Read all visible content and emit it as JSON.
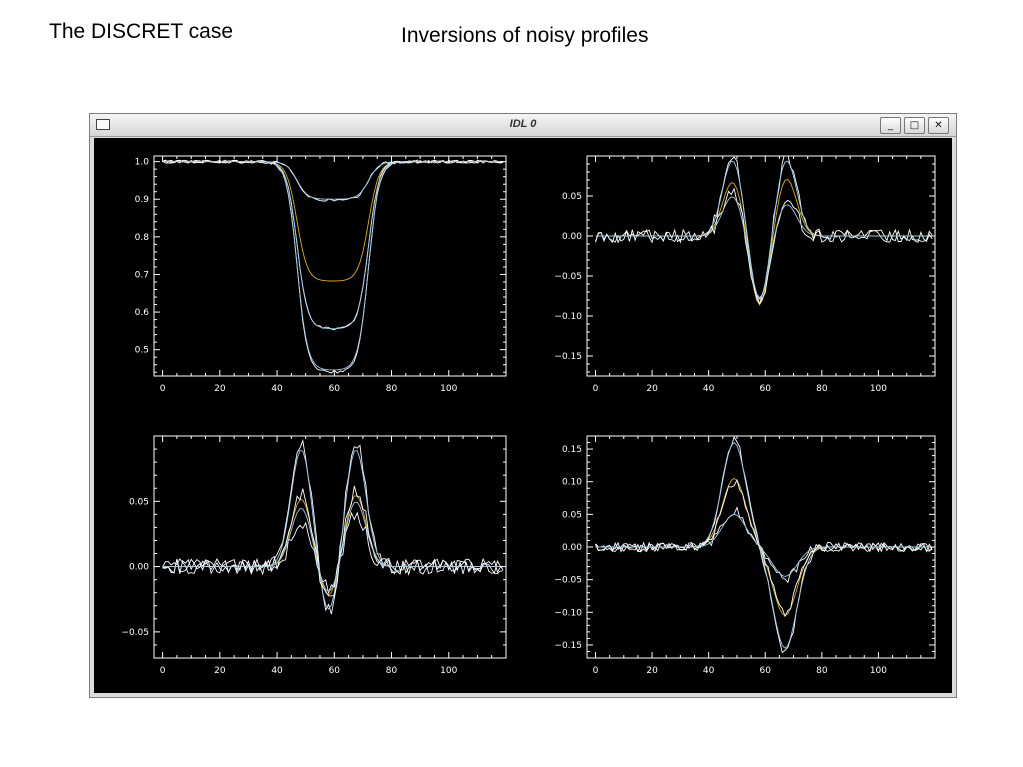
{
  "slide": {
    "title_left": "The DISCRET case",
    "title_right": "Inversions of noisy profiles"
  },
  "window": {
    "title": "IDL 0",
    "minimize_glyph": "_",
    "maximize_glyph": "□",
    "close_glyph": "✕"
  },
  "colors": {
    "background": "#000000",
    "axes": "#ffffff",
    "white_lines": "#ffffff",
    "blue_lines": "#9ecbe8",
    "yellow_lines": "#e0b000"
  },
  "chart_data": [
    {
      "type": "line",
      "panel": "top-left",
      "xlim": [
        -3,
        120
      ],
      "ylim": [
        0.43,
        1.015
      ],
      "xticks": [
        "0",
        "20",
        "40",
        "60",
        "80",
        "100"
      ],
      "xtick_values": [
        0,
        20,
        40,
        60,
        80,
        100
      ],
      "yticks": [
        "0.5",
        "0.6",
        "0.7",
        "0.8",
        "0.9",
        "1.0"
      ],
      "ytick_values": [
        0.5,
        0.6,
        0.7,
        0.8,
        0.9,
        1.0
      ],
      "profile_kind": "absorption",
      "series": [
        {
          "color": "white",
          "depth": 0.103,
          "noise": 0.004
        },
        {
          "color": "blue",
          "depth": 0.1,
          "noise": 0.0
        },
        {
          "color": "yellow",
          "depth": 0.318,
          "noise": 0.0
        },
        {
          "color": "white",
          "depth": 0.445,
          "noise": 0.004
        },
        {
          "color": "blue",
          "depth": 0.445,
          "noise": 0.0
        },
        {
          "color": "white",
          "depth": 0.56,
          "noise": 0.004
        },
        {
          "color": "blue",
          "depth": 0.555,
          "noise": 0.0
        }
      ]
    },
    {
      "type": "line",
      "panel": "top-right",
      "xlim": [
        -3,
        120
      ],
      "ylim": [
        -0.175,
        0.1
      ],
      "xticks": [
        "0",
        "20",
        "40",
        "60",
        "80",
        "100"
      ],
      "xtick_values": [
        0,
        20,
        40,
        60,
        80,
        100
      ],
      "yticks": [
        "−0.15",
        "−0.10",
        "−0.05",
        "0.00",
        "0.05"
      ],
      "ytick_values": [
        -0.15,
        -0.1,
        -0.05,
        0.0,
        0.05
      ],
      "profile_kind": "double-peak",
      "series": [
        {
          "color": "white",
          "peak1": 0.1,
          "dip": -0.09,
          "peak2": 0.1,
          "noise": 0.008
        },
        {
          "color": "blue",
          "peak1": 0.095,
          "dip": -0.085,
          "peak2": 0.095,
          "noise": 0.0
        },
        {
          "color": "yellow",
          "peak1": 0.068,
          "dip": -0.09,
          "peak2": 0.072,
          "noise": 0.0
        },
        {
          "color": "white",
          "peak1": 0.055,
          "dip": -0.085,
          "peak2": 0.045,
          "noise": 0.008
        },
        {
          "color": "blue",
          "peak1": 0.05,
          "dip": -0.08,
          "peak2": 0.04,
          "noise": 0.0
        }
      ]
    },
    {
      "type": "line",
      "panel": "bottom-left",
      "xlim": [
        -3,
        120
      ],
      "ylim": [
        -0.07,
        0.1
      ],
      "xticks": [
        "0",
        "20",
        "40",
        "60",
        "80",
        "100"
      ],
      "xtick_values": [
        0,
        20,
        40,
        60,
        80,
        100
      ],
      "yticks": [
        "−0.05",
        "0.00",
        "0.05"
      ],
      "ytick_values": [
        -0.05,
        0.0,
        0.05
      ],
      "profile_kind": "double-peak",
      "series": [
        {
          "color": "white",
          "peak1": 0.096,
          "dip": -0.04,
          "peak2": 0.096,
          "noise": 0.006
        },
        {
          "color": "blue",
          "peak1": 0.09,
          "dip": -0.038,
          "peak2": 0.09,
          "noise": 0.0
        },
        {
          "color": "yellow",
          "peak1": 0.052,
          "dip": -0.025,
          "peak2": 0.055,
          "noise": 0.0
        },
        {
          "color": "white",
          "peak1": 0.055,
          "dip": -0.03,
          "peak2": 0.06,
          "noise": 0.006
        },
        {
          "color": "white",
          "peak1": 0.035,
          "dip": -0.018,
          "peak2": 0.04,
          "noise": 0.006
        },
        {
          "color": "blue",
          "peak1": 0.045,
          "dip": -0.022,
          "peak2": 0.05,
          "noise": 0.0
        }
      ]
    },
    {
      "type": "line",
      "panel": "bottom-right",
      "xlim": [
        -3,
        120
      ],
      "ylim": [
        -0.17,
        0.17
      ],
      "xticks": [
        "0",
        "20",
        "40",
        "60",
        "80",
        "100"
      ],
      "xtick_values": [
        0,
        20,
        40,
        60,
        80,
        100
      ],
      "yticks": [
        "−0.15",
        "−0.10",
        "−0.05",
        "0.00",
        "0.05",
        "0.10",
        "0.15"
      ],
      "ytick_values": [
        -0.15,
        -0.1,
        -0.05,
        0.0,
        0.05,
        0.1,
        0.15
      ],
      "profile_kind": "antisymmetric",
      "series": [
        {
          "color": "white",
          "peak": 0.165,
          "dip": -0.16,
          "noise": 0.007
        },
        {
          "color": "blue",
          "peak": 0.16,
          "dip": -0.155,
          "noise": 0.0
        },
        {
          "color": "yellow",
          "peak": 0.105,
          "dip": -0.105,
          "noise": 0.0
        },
        {
          "color": "white",
          "peak": 0.1,
          "dip": -0.1,
          "noise": 0.007
        },
        {
          "color": "white",
          "peak": 0.055,
          "dip": -0.05,
          "noise": 0.007
        },
        {
          "color": "blue",
          "peak": 0.05,
          "dip": -0.045,
          "noise": 0.0
        }
      ]
    }
  ]
}
